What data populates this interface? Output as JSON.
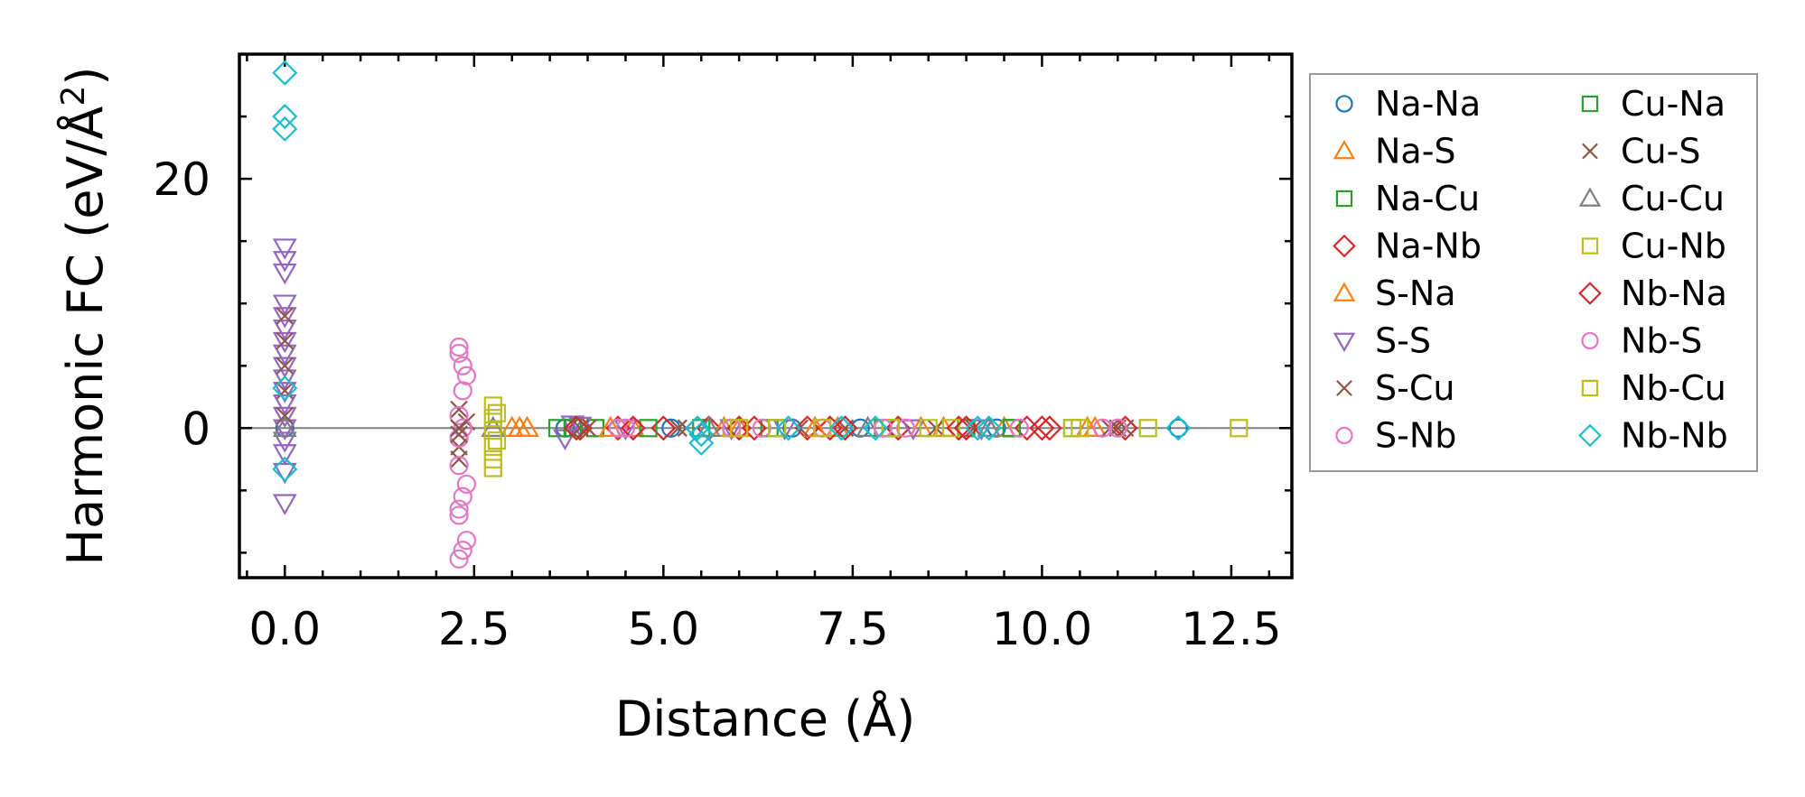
{
  "chart_data": {
    "type": "scatter",
    "title": "",
    "xlabel": "Distance (Å)",
    "ylabel_main": "Harmonic FC (eV/Å",
    "ylabel_sup": "2",
    "ylabel_close": ")",
    "xlim": [
      -0.6,
      13.3
    ],
    "ylim": [
      -12,
      30
    ],
    "xticks": [
      0.0,
      2.5,
      5.0,
      7.5,
      10.0,
      12.5
    ],
    "xtick_labels": [
      "0.0",
      "2.5",
      "5.0",
      "7.5",
      "10.0",
      "12.5"
    ],
    "yticks": [
      0,
      20
    ],
    "ytick_labels": [
      "0",
      "20"
    ],
    "x_minor_step": 0.5,
    "y_minor_step": 5,
    "zero_line": true,
    "legend_placement": "outside-right",
    "legend_columns": 2,
    "series": [
      {
        "name": "Na-Na",
        "marker": "circle",
        "color": "#1f77b4",
        "points": [
          [
            0,
            0
          ],
          [
            3.7,
            0
          ],
          [
            5.1,
            0
          ],
          [
            6.7,
            0
          ],
          [
            7.6,
            0
          ],
          [
            9.4,
            0
          ],
          [
            11.8,
            0
          ]
        ]
      },
      {
        "name": "Na-S",
        "marker": "triangle-up",
        "color": "#ff7f0e",
        "points": [
          [
            3.0,
            0
          ],
          [
            3.2,
            0
          ],
          [
            4.6,
            0
          ],
          [
            6.0,
            0
          ],
          [
            7.3,
            0
          ],
          [
            8.7,
            0
          ],
          [
            10.6,
            0
          ]
        ]
      },
      {
        "name": "Na-Cu",
        "marker": "square",
        "color": "#2ca02c",
        "points": [
          [
            3.6,
            0
          ],
          [
            4.1,
            0
          ],
          [
            5.5,
            0
          ],
          [
            6.4,
            0
          ],
          [
            7.9,
            0
          ],
          [
            9.0,
            0
          ],
          [
            9.6,
            0
          ],
          [
            10.4,
            0
          ]
        ]
      },
      {
        "name": "Na-Nb",
        "marker": "diamond",
        "color": "#d62728",
        "points": [
          [
            3.9,
            0
          ],
          [
            4.4,
            0
          ],
          [
            5.0,
            0
          ],
          [
            5.6,
            0
          ],
          [
            6.2,
            0
          ],
          [
            6.9,
            0
          ],
          [
            7.2,
            0
          ],
          [
            8.1,
            0
          ],
          [
            8.9,
            0
          ],
          [
            9.8,
            0
          ],
          [
            10.1,
            0
          ],
          [
            11.1,
            0
          ]
        ]
      },
      {
        "name": "S-Na",
        "marker": "triangle-up",
        "color": "#ff7f0e",
        "points": [
          [
            3.1,
            0
          ],
          [
            4.3,
            0
          ],
          [
            5.8,
            0
          ],
          [
            7.0,
            0
          ],
          [
            8.4,
            0
          ],
          [
            9.5,
            0
          ],
          [
            10.7,
            0
          ]
        ]
      },
      {
        "name": "S-S",
        "marker": "triangle-down",
        "color": "#9467bd",
        "points": [
          [
            0,
            14.5
          ],
          [
            0,
            13.5
          ],
          [
            0,
            12.5
          ],
          [
            0,
            10
          ],
          [
            0,
            9
          ],
          [
            0,
            8
          ],
          [
            0,
            7
          ],
          [
            0,
            6
          ],
          [
            0,
            5
          ],
          [
            0,
            4
          ],
          [
            0,
            3
          ],
          [
            0,
            2
          ],
          [
            0,
            1
          ],
          [
            0,
            0
          ],
          [
            0,
            -1
          ],
          [
            0,
            -2
          ],
          [
            0,
            -3.5
          ],
          [
            0,
            -6
          ],
          [
            3.7,
            -0.8
          ],
          [
            3.8,
            0.3
          ],
          [
            3.9,
            0.2
          ],
          [
            4.5,
            0
          ],
          [
            5.9,
            0
          ],
          [
            6.6,
            0
          ],
          [
            8.3,
            0
          ],
          [
            9.2,
            0
          ]
        ]
      },
      {
        "name": "S-Cu",
        "marker": "x",
        "color": "#8c564b",
        "points": [
          [
            0,
            9
          ],
          [
            0,
            7
          ],
          [
            0,
            5
          ],
          [
            0,
            3
          ],
          [
            0,
            1
          ],
          [
            2.3,
            1.5
          ],
          [
            2.3,
            -1.5
          ],
          [
            2.3,
            -2.5
          ],
          [
            2.4,
            0.5
          ],
          [
            3.9,
            0
          ],
          [
            5.2,
            0
          ],
          [
            6.8,
            0
          ],
          [
            8.6,
            0
          ],
          [
            10.9,
            0
          ],
          [
            11.1,
            0
          ]
        ]
      },
      {
        "name": "S-Nb",
        "marker": "circle",
        "color": "#e377c2",
        "points": [
          [
            2.3,
            6.5
          ],
          [
            2.3,
            6
          ],
          [
            2.35,
            5
          ],
          [
            2.4,
            4.2
          ],
          [
            2.3,
            1
          ],
          [
            2.35,
            0
          ],
          [
            2.3,
            -0.8
          ],
          [
            2.4,
            -4.5
          ],
          [
            2.35,
            -5.5
          ],
          [
            2.3,
            -6.5
          ],
          [
            2.3,
            -7
          ],
          [
            2.4,
            -9
          ],
          [
            2.35,
            -9.8
          ],
          [
            2.3,
            -10.5
          ],
          [
            4.4,
            0
          ],
          [
            4.6,
            0
          ],
          [
            6.3,
            0
          ],
          [
            7.1,
            0
          ],
          [
            8.2,
            0
          ],
          [
            10.8,
            0
          ]
        ]
      },
      {
        "name": "Cu-Na",
        "marker": "square",
        "color": "#2ca02c",
        "points": [
          [
            3.8,
            0
          ],
          [
            4.8,
            0
          ],
          [
            6.5,
            0
          ],
          [
            8.0,
            0
          ],
          [
            9.6,
            0
          ]
        ]
      },
      {
        "name": "Cu-S",
        "marker": "x",
        "color": "#8c564b",
        "points": [
          [
            2.3,
            0
          ],
          [
            2.3,
            -0.5
          ],
          [
            4.0,
            0
          ],
          [
            5.3,
            0
          ],
          [
            7.4,
            0
          ],
          [
            9.1,
            0
          ],
          [
            11.0,
            0
          ]
        ]
      },
      {
        "name": "Cu-Cu",
        "marker": "triangle-up",
        "color": "#7f7f7f",
        "points": [
          [
            0,
            0
          ],
          [
            2.75,
            0
          ],
          [
            5.6,
            0
          ],
          [
            7.7,
            0
          ],
          [
            9.3,
            0
          ]
        ]
      },
      {
        "name": "Cu-Nb",
        "marker": "square",
        "color": "#bcbd22",
        "points": [
          [
            2.75,
            1.8
          ],
          [
            2.75,
            0.8
          ],
          [
            2.75,
            -0.2
          ],
          [
            2.75,
            -1.5
          ],
          [
            2.75,
            -2.5
          ],
          [
            2.75,
            -3.2
          ],
          [
            5.9,
            0
          ],
          [
            6.5,
            0
          ],
          [
            7.1,
            0
          ],
          [
            8.0,
            0
          ],
          [
            8.8,
            0
          ],
          [
            10.4,
            0
          ],
          [
            11.4,
            0
          ],
          [
            12.6,
            0
          ]
        ]
      },
      {
        "name": "Nb-Na",
        "marker": "diamond",
        "color": "#d62728",
        "points": [
          [
            3.85,
            0
          ],
          [
            4.6,
            0
          ],
          [
            6.0,
            0
          ],
          [
            7.4,
            0
          ],
          [
            9.0,
            0
          ],
          [
            10.0,
            0
          ]
        ]
      },
      {
        "name": "Nb-S",
        "marker": "circle",
        "color": "#e377c2",
        "points": [
          [
            2.35,
            3
          ],
          [
            2.3,
            -3
          ],
          [
            4.5,
            0
          ],
          [
            5.9,
            0
          ],
          [
            7.9,
            0
          ],
          [
            9.7,
            0
          ],
          [
            11.0,
            0
          ]
        ]
      },
      {
        "name": "Nb-Cu",
        "marker": "square",
        "color": "#bcbd22",
        "points": [
          [
            2.8,
            1.2
          ],
          [
            2.8,
            -1
          ],
          [
            6.0,
            0
          ],
          [
            8.5,
            0
          ],
          [
            10.5,
            0
          ]
        ]
      },
      {
        "name": "Nb-Nb",
        "marker": "diamond",
        "color": "#17becf",
        "points": [
          [
            0,
            28.5
          ],
          [
            0,
            25
          ],
          [
            0,
            24
          ],
          [
            0,
            3.2
          ],
          [
            0,
            -3.3
          ],
          [
            5.45,
            0
          ],
          [
            5.5,
            -0.5
          ],
          [
            5.5,
            -1.2
          ],
          [
            6.65,
            0
          ],
          [
            7.35,
            0
          ],
          [
            7.8,
            0
          ],
          [
            9.15,
            0
          ],
          [
            9.3,
            0
          ],
          [
            11.8,
            0
          ]
        ]
      }
    ]
  }
}
